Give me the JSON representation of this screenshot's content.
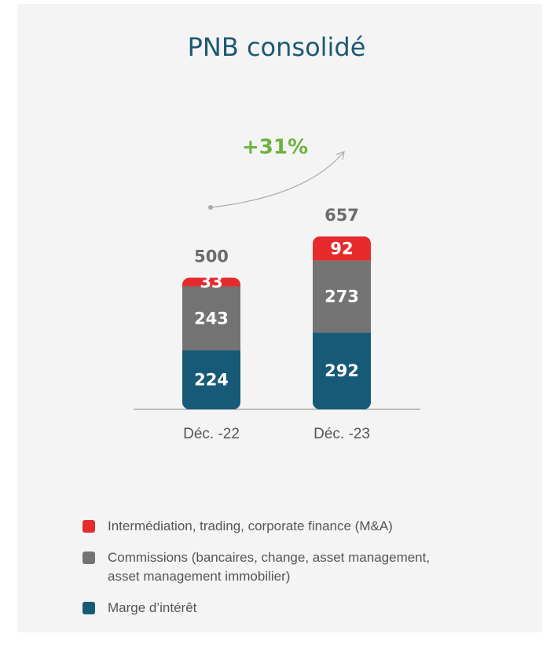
{
  "chart_data": {
    "type": "stacked_bar",
    "title": "PNB consolidé",
    "annotation": "+31%",
    "categories": [
      "Déc. -22",
      "Déc. -23"
    ],
    "series": [
      {
        "name": "Marge d’intérêt",
        "color": "#165a78",
        "values": [
          224,
          292
        ]
      },
      {
        "name": "Commissions (bancaires, change, asset management, asset management immobilier)",
        "color": "#737373",
        "values": [
          243,
          273
        ]
      },
      {
        "name": "Intermédiation, trading, corporate finance (M&A)",
        "color": "#e52b2b",
        "values": [
          33,
          92
        ]
      }
    ],
    "totals": [
      500,
      657
    ]
  }
}
